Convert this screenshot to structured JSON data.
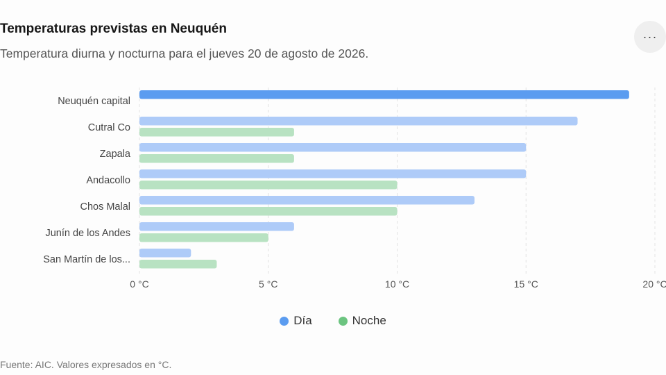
{
  "header": {
    "title": "Temperaturas previstas en Neuquén",
    "subtitle": "Temperatura diurna y nocturna para el jueves 20 de agosto de 2026.",
    "menu_label": "···"
  },
  "legend": {
    "items": [
      {
        "label": "Día",
        "color": "#5b9cf0"
      },
      {
        "label": "Noche",
        "color": "#6cc480"
      }
    ]
  },
  "footer": {
    "source": "Fuente: AIC. Valores expresados en °C."
  },
  "colors": {
    "day_highlight": "#5b9cf0",
    "day": "#aecbf8",
    "night": "#b8e2c2",
    "grid": "#e2e2e2"
  },
  "chart_data": {
    "type": "bar",
    "orientation": "horizontal",
    "categories": [
      "Neuquén capital",
      "Cutral Co",
      "Zapala",
      "Andacollo",
      "Chos Malal",
      "Junín de los Andes",
      "San Martín de los..."
    ],
    "series": [
      {
        "name": "Día",
        "values": [
          19,
          17,
          15,
          15,
          13,
          6,
          2
        ]
      },
      {
        "name": "Noche",
        "values": [
          null,
          6,
          6,
          10,
          10,
          5,
          3
        ]
      }
    ],
    "xlim": [
      0,
      20
    ],
    "xticks": [
      0,
      5,
      10,
      15,
      20
    ],
    "tick_labels": [
      "0 °C",
      "5 °C",
      "10 °C",
      "15 °C",
      "20 °C"
    ],
    "grid": true,
    "legend_position": "bottom"
  }
}
